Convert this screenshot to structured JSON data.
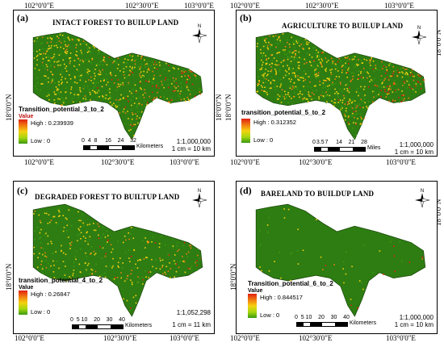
{
  "colors": {
    "forest_green": "#2e7d12",
    "high": "#e02010",
    "mid_orange": "#f07a10",
    "mid_yellow": "#f5d010",
    "low_green": "#3a9a10"
  },
  "top_coords": {
    "c1": "102°0'0\"E",
    "c2": "102°30'0\"E",
    "c3": "103°0'0\"E"
  },
  "mid_coords": {
    "c1": "102°0'0\"E",
    "c2": "102°30'0\"E",
    "c3": "103°0'0\"E"
  },
  "bottom_coords": {
    "c1": "102°0'0\"E",
    "c2": "102°30'0\"E",
    "c3": "103°0'0\"E"
  },
  "lat_label": "18°0'0\"N",
  "panels": {
    "a": {
      "label": "(a)",
      "title": "INTACT FOREST TO BUILUP LAND",
      "legend_title": "Transition_potential_3_to_2",
      "value_label": "Value",
      "high": "High : 0.239939",
      "low": "Low : 0",
      "scale_ticks": [
        "0",
        "4",
        "8",
        "16",
        "24",
        "32"
      ],
      "scale_unit": "Kilometers",
      "ratio": "1:1,000,000",
      "ratio2": "1 cm = 10 km",
      "north": "N",
      "intensity": 0.7
    },
    "b": {
      "label": "(b)",
      "title": "AGRICULTURE TO BUILUP LAND",
      "legend_title": "transition_potential_5_to_2",
      "value_label": "Value",
      "high": "High : 0.312352",
      "low": "Low : 0",
      "scale_ticks": [
        "0",
        "3.5",
        "7",
        "14",
        "21",
        "28"
      ],
      "scale_unit": "Miles",
      "ratio": "1:1,000,000",
      "ratio2": "1 cm = 10 km",
      "north": "N",
      "intensity": 0.85
    },
    "c": {
      "label": "(c)",
      "title": "DEGRADED FOREST TO BUILTUP LAND",
      "legend_title": "transition_potential_4_to_2",
      "value_label": "Value",
      "high": "High : 0.26847",
      "low": "Low : 0",
      "scale_ticks": [
        "0",
        "5",
        "10",
        "20",
        "30",
        "40"
      ],
      "scale_unit": "Kilometers",
      "ratio": "1:1,052,298",
      "ratio2": "1 cm = 11 km",
      "north": "N",
      "intensity": 0.35
    },
    "d": {
      "label": "(d)",
      "title": "BARELAND TO BUILDUP LAND",
      "legend_title": "Transition_potential_6_to_2",
      "value_label": "Value",
      "high": "High : 0.844517",
      "low": "Low : 0",
      "scale_ticks": [
        "0",
        "5",
        "10",
        "20",
        "30",
        "40"
      ],
      "scale_unit": "Kilometers",
      "ratio": "1:1,000,000",
      "ratio2": "1 cm = 10 km",
      "north": "N",
      "intensity": 0.04
    }
  }
}
